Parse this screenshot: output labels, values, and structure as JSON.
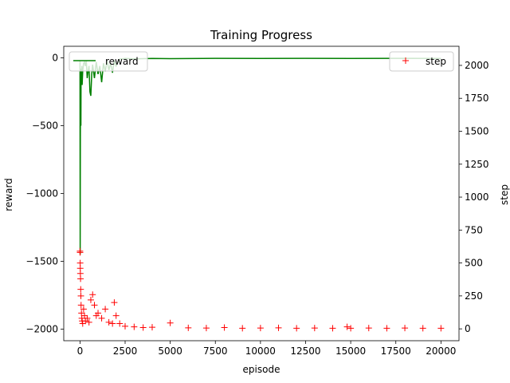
{
  "chart_data": {
    "type": "line",
    "title": "Training Progress",
    "xlabel": "episode",
    "ylabel_left": "reward",
    "ylabel_right": "step",
    "xlim": [
      -900,
      21000
    ],
    "ylim_left": [
      -2085,
      85
    ],
    "ylim_right": [
      -90,
      2145
    ],
    "x_ticks": [
      0,
      2500,
      5000,
      7500,
      10000,
      12500,
      15000,
      17500,
      20000
    ],
    "y_ticks_left": [
      0,
      -500,
      -1000,
      -1500,
      -2000
    ],
    "y_ticks_right": [
      0,
      250,
      500,
      750,
      1000,
      1250,
      1500,
      1750,
      2000
    ],
    "grid": false,
    "series": [
      {
        "name": "reward",
        "axis": "left",
        "style": "line",
        "color": "#008000",
        "x": [
          0,
          10,
          20,
          30,
          40,
          50,
          60,
          80,
          100,
          120,
          150,
          200,
          250,
          300,
          350,
          400,
          450,
          500,
          550,
          600,
          650,
          700,
          800,
          900,
          1000,
          1100,
          1200,
          1300,
          1400,
          1500,
          1600,
          1700,
          1800,
          1900,
          2000,
          2200,
          2500,
          3000,
          4000,
          5000,
          7500,
          10000,
          12500,
          15000,
          17500,
          20000
        ],
        "values": [
          -20,
          -1450,
          -600,
          -200,
          -300,
          -500,
          -80,
          -150,
          -60,
          -200,
          -100,
          -40,
          -30,
          -60,
          -20,
          -150,
          -100,
          -60,
          -250,
          -280,
          -120,
          -50,
          -150,
          -30,
          -120,
          -60,
          -180,
          -40,
          -100,
          -20,
          -90,
          -40,
          -110,
          -20,
          -60,
          -10,
          -5,
          -8,
          -5,
          -6,
          -4,
          -5,
          -4,
          -5,
          -4,
          -5
        ]
      },
      {
        "name": "step",
        "axis": "right",
        "style": "markers",
        "marker": "+",
        "color": "#ff0000",
        "x": [
          0,
          5,
          10,
          15,
          20,
          30,
          40,
          50,
          60,
          80,
          100,
          120,
          150,
          200,
          250,
          300,
          400,
          500,
          600,
          700,
          800,
          900,
          1000,
          1200,
          1400,
          1600,
          1800,
          1900,
          2000,
          2200,
          2500,
          3000,
          3500,
          4000,
          5000,
          6000,
          7000,
          8000,
          9000,
          10000,
          11000,
          12000,
          13000,
          14000,
          14800,
          15000,
          16000,
          17000,
          18000,
          19000,
          20000
        ],
        "values": [
          590,
          580,
          500,
          460,
          420,
          380,
          300,
          250,
          180,
          120,
          80,
          60,
          40,
          150,
          100,
          60,
          80,
          50,
          220,
          260,
          180,
          100,
          120,
          80,
          150,
          50,
          40,
          200,
          100,
          40,
          20,
          15,
          10,
          12,
          45,
          8,
          6,
          10,
          5,
          6,
          8,
          5,
          6,
          5,
          15,
          5,
          6,
          5,
          6,
          5,
          5
        ]
      }
    ],
    "legend": [
      {
        "label": "reward",
        "placement": "upper-left"
      },
      {
        "label": "step",
        "placement": "upper-right"
      }
    ]
  }
}
